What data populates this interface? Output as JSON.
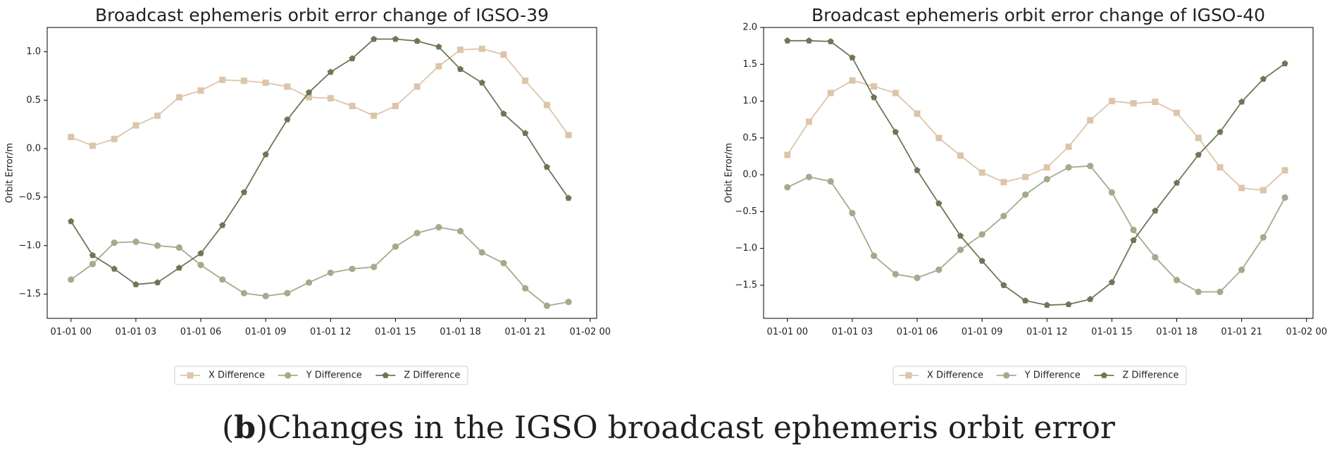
{
  "caption": {
    "label": "b",
    "text": "Changes in the IGSO broadcast ephemeris orbit error"
  },
  "colors": {
    "x": "#dcc5aa",
    "y": "#a3ab8b",
    "z": "#6e7656",
    "axis": "#000000",
    "text": "#222222"
  },
  "chart_data": [
    {
      "type": "line",
      "title": "Broadcast ephemeris orbit error change of IGSO-39",
      "xlabel": "",
      "ylabel": "Orbit Error/m",
      "x_hours": [
        0,
        1,
        2,
        3,
        4,
        5,
        6,
        7,
        8,
        9,
        10,
        11,
        12,
        13,
        14,
        15,
        16,
        17,
        18,
        19,
        20,
        21,
        22,
        23
      ],
      "xlim": [
        -1.1,
        24.3
      ],
      "ylim": [
        -1.75,
        1.25
      ],
      "xticks": [
        0,
        3,
        6,
        9,
        12,
        15,
        18,
        21,
        24
      ],
      "xtick_labels": [
        "01-01 00",
        "01-01 03",
        "01-01 06",
        "01-01 09",
        "01-01 12",
        "01-01 15",
        "01-01 18",
        "01-01 21",
        "01-02 00"
      ],
      "yticks": [
        1.0,
        0.5,
        0.0,
        -0.5,
        -1.0,
        -1.5
      ],
      "ytick_labels": [
        "1.0",
        "0.5",
        "0.0",
        "−0.5",
        "−1.0",
        "−1.5"
      ],
      "legend_position": "bottom-center",
      "series": [
        {
          "name": "X Difference",
          "marker": "square",
          "values": [
            0.12,
            0.03,
            0.1,
            0.24,
            0.34,
            0.53,
            0.6,
            0.71,
            0.7,
            0.68,
            0.64,
            0.53,
            0.52,
            0.44,
            0.34,
            0.44,
            0.64,
            0.85,
            1.02,
            1.03,
            0.97,
            0.7,
            0.45,
            0.14
          ]
        },
        {
          "name": "Y Difference",
          "marker": "circle",
          "values": [
            -1.35,
            -1.19,
            -0.97,
            -0.96,
            -1.0,
            -1.02,
            -1.2,
            -1.35,
            -1.49,
            -1.52,
            -1.49,
            -1.38,
            -1.28,
            -1.24,
            -1.22,
            -1.01,
            -0.87,
            -0.81,
            -0.85,
            -1.07,
            -1.18,
            -1.44,
            -1.62,
            -1.58
          ]
        },
        {
          "name": "Z Difference",
          "marker": "pentagon",
          "values": [
            -0.75,
            -1.1,
            -1.24,
            -1.4,
            -1.38,
            -1.23,
            -1.08,
            -0.79,
            -0.45,
            -0.06,
            0.3,
            0.58,
            0.79,
            0.93,
            1.13,
            1.13,
            1.11,
            1.05,
            0.82,
            0.68,
            0.36,
            0.16,
            -0.19,
            -0.51
          ]
        }
      ]
    },
    {
      "type": "line",
      "title": "Broadcast ephemeris orbit error change of IGSO-40",
      "xlabel": "",
      "ylabel": "Orbit Error/m",
      "x_hours": [
        0,
        1,
        2,
        3,
        4,
        5,
        6,
        7,
        8,
        9,
        10,
        11,
        12,
        13,
        14,
        15,
        16,
        17,
        18,
        19,
        20,
        21,
        22,
        23
      ],
      "xlim": [
        -1.1,
        24.3
      ],
      "ylim": [
        -1.95,
        2.0
      ],
      "xticks": [
        0,
        3,
        6,
        9,
        12,
        15,
        18,
        21,
        24
      ],
      "xtick_labels": [
        "01-01 00",
        "01-01 03",
        "01-01 06",
        "01-01 09",
        "01-01 12",
        "01-01 15",
        "01-01 18",
        "01-01 21",
        "01-02 00"
      ],
      "yticks": [
        2.0,
        1.5,
        1.0,
        0.5,
        0.0,
        -0.5,
        -1.0,
        -1.5
      ],
      "ytick_labels": [
        "2.0",
        "1.5",
        "1.0",
        "0.5",
        "0.0",
        "−0.5",
        "−1.0",
        "−1.5"
      ],
      "legend_position": "bottom-center",
      "series": [
        {
          "name": "X Difference",
          "marker": "square",
          "values": [
            0.27,
            0.72,
            1.11,
            1.28,
            1.2,
            1.11,
            0.83,
            0.5,
            0.26,
            0.03,
            -0.1,
            -0.03,
            0.1,
            0.38,
            0.74,
            1.0,
            0.97,
            0.99,
            0.84,
            0.5,
            0.1,
            -0.18,
            -0.21,
            0.06
          ]
        },
        {
          "name": "Y Difference",
          "marker": "circle",
          "values": [
            -0.17,
            -0.03,
            -0.09,
            -0.52,
            -1.1,
            -1.35,
            -1.4,
            -1.29,
            -1.02,
            -0.81,
            -0.56,
            -0.27,
            -0.06,
            0.1,
            0.12,
            -0.24,
            -0.75,
            -1.12,
            -1.43,
            -1.59,
            -1.59,
            -1.29,
            -0.85,
            -0.31
          ]
        },
        {
          "name": "Z Difference",
          "marker": "pentagon",
          "values": [
            1.82,
            1.82,
            1.81,
            1.59,
            1.05,
            0.58,
            0.06,
            -0.39,
            -0.83,
            -1.17,
            -1.5,
            -1.71,
            -1.77,
            -1.76,
            -1.69,
            -1.46,
            -0.89,
            -0.49,
            -0.11,
            0.27,
            0.58,
            0.99,
            1.3,
            1.51
          ]
        }
      ]
    }
  ]
}
